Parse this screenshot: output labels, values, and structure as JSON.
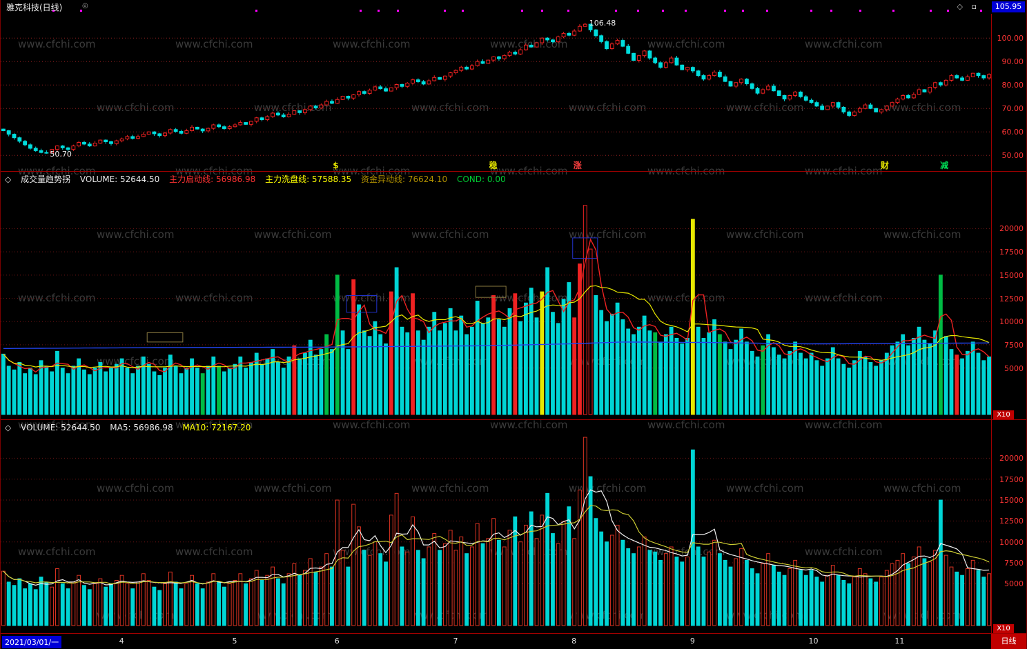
{
  "window": {
    "title": "雅克科技(日线)",
    "badge": "◎",
    "icon_diamond": "◇",
    "icon_square": "▫",
    "price_box": "105.95"
  },
  "watermark": {
    "text": "www.cfchi.com"
  },
  "panels": {
    "candle": {
      "y_ticks": [
        {
          "label": "100.00",
          "v": 100
        },
        {
          "label": "90.00",
          "v": 90
        },
        {
          "label": "80.00",
          "v": 80
        },
        {
          "label": "70.00",
          "v": 70
        },
        {
          "label": "60.00",
          "v": 60
        },
        {
          "label": "50.00",
          "v": 50
        }
      ],
      "high_label": "106.48",
      "high_index": 108,
      "low_label": "50.70",
      "low_index": 8,
      "markers": [
        {
          "f": 0.338,
          "t": "$",
          "c": "#e8e800"
        },
        {
          "f": 0.497,
          "t": "稳",
          "c": "#e8e800"
        },
        {
          "f": 0.582,
          "t": "涨",
          "c": "#ff4040"
        },
        {
          "f": 0.892,
          "t": "财",
          "c": "#e8e800"
        },
        {
          "f": 0.952,
          "t": "减",
          "c": "#00dd55"
        }
      ],
      "dots": [
        0.052,
        0.08,
        0.257,
        0.362,
        0.38,
        0.4,
        0.447,
        0.465,
        0.525,
        0.545,
        0.572,
        0.62,
        0.642,
        0.667,
        0.69,
        0.73,
        0.748,
        0.772,
        0.817,
        0.837,
        0.866,
        0.9,
        0.937,
        0.955,
        0.988
      ]
    },
    "mid": {
      "header": {
        "prefix": "◇",
        "name": "成交量趋势拐",
        "volume": "VOLUME: 52644.50",
        "line1": "主力启动线: 56986.98",
        "line2": "主力洗盘线: 57588.35",
        "line3": "资金异动线: 76624.10",
        "cond": "COND: 0.00"
      },
      "unit": "X10",
      "y_ticks": [
        {
          "label": "20000",
          "v": 20000
        },
        {
          "label": "17500",
          "v": 17500
        },
        {
          "label": "15000",
          "v": 15000
        },
        {
          "label": "12500",
          "v": 12500
        },
        {
          "label": "10000",
          "v": 10000
        },
        {
          "label": "7500",
          "v": 7500
        },
        {
          "label": "5000",
          "v": 5000
        }
      ],
      "color_overrides": {
        "37": "g",
        "40": "g",
        "54": "r",
        "60": "g",
        "62": "g",
        "65": "r",
        "72": "r",
        "76": "r",
        "91": "r",
        "95": "r",
        "100": "y",
        "106": "r",
        "107": "r",
        "108": "R",
        "109": "R",
        "121": "g",
        "128": "y",
        "133": "g",
        "141": "g",
        "174": "g",
        "177": "r"
      },
      "boxes": [
        {
          "i0": 27,
          "i1": 33,
          "v0": 7800,
          "v1": 8800,
          "color": "#8a7a40"
        },
        {
          "i0": 64,
          "i1": 69,
          "v0": 11000,
          "v1": 12800,
          "color": "#2233cc"
        },
        {
          "i0": 88,
          "i1": 93,
          "v0": 12600,
          "v1": 13800,
          "color": "#8a7a40"
        },
        {
          "i0": 106,
          "i1": 110,
          "v0": 16800,
          "v1": 19000,
          "color": "#2233cc"
        }
      ],
      "blue_line": [
        [
          0,
          7100
        ],
        [
          30,
          7200
        ],
        [
          60,
          7250
        ],
        [
          90,
          7400
        ],
        [
          105,
          7600
        ],
        [
          115,
          7800
        ],
        [
          130,
          7750
        ],
        [
          150,
          7600
        ],
        [
          170,
          7650
        ],
        [
          183,
          7700
        ]
      ]
    },
    "vol": {
      "header": {
        "prefix": "◇",
        "volume": "VOLUME: 52644.50",
        "ma5": "MA5: 56986.98",
        "ma10": "MA10: 72167.20"
      },
      "unit": "X10",
      "y_ticks": [
        {
          "label": "20000",
          "v": 20000
        },
        {
          "label": "17500",
          "v": 17500
        },
        {
          "label": "15000",
          "v": 15000
        },
        {
          "label": "12500",
          "v": 12500
        },
        {
          "label": "10000",
          "v": 10000
        },
        {
          "label": "7500",
          "v": 7500
        },
        {
          "label": "5000",
          "v": 5000
        }
      ]
    }
  },
  "timeline": {
    "date": "2021/03/01/一",
    "period": "日线",
    "months": [
      {
        "label": "4",
        "i": 22
      },
      {
        "label": "5",
        "i": 43
      },
      {
        "label": "6",
        "i": 62
      },
      {
        "label": "7",
        "i": 84
      },
      {
        "label": "8",
        "i": 106
      },
      {
        "label": "9",
        "i": 128
      },
      {
        "label": "10",
        "i": 150
      },
      {
        "label": "11",
        "i": 166
      }
    ]
  },
  "chart_data": {
    "type": "candlestick",
    "symbol": "雅克科技",
    "period": "日线",
    "start_date": "2021/03/01",
    "price_high": 106.48,
    "price_low": 50.7,
    "price_axis": [
      100,
      90,
      80,
      70,
      60,
      50
    ],
    "volume_axis_x10": [
      20000,
      17500,
      15000,
      12500,
      10000,
      7500,
      5000
    ],
    "x_axis_months": [
      "4",
      "5",
      "6",
      "7",
      "8",
      "9",
      "10",
      "11"
    ],
    "overlay_lines": {
      "mid_panel": [
        "主力启动线(red)",
        "主力洗盘线(yellow)",
        "资金异动线(blue)"
      ],
      "vol_panel": [
        "MA5(white)",
        "MA10(yellow)"
      ]
    },
    "close": [
      60.5,
      59.0,
      57.5,
      56.0,
      54.5,
      53.0,
      52.0,
      51.2,
      51.0,
      52.5,
      54.0,
      53.2,
      52.5,
      54.0,
      55.5,
      54.8,
      54.0,
      55.2,
      56.5,
      55.8,
      55.0,
      56.2,
      57.0,
      58.0,
      57.2,
      58.0,
      59.0,
      60.0,
      59.2,
      58.4,
      59.5,
      61.0,
      60.2,
      59.4,
      60.5,
      62.0,
      61.2,
      60.4,
      61.5,
      63.0,
      62.2,
      61.4,
      62.2,
      63.0,
      64.0,
      63.2,
      64.5,
      66.0,
      65.2,
      66.5,
      68.0,
      67.2,
      66.4,
      67.5,
      69.0,
      68.2,
      69.5,
      71.0,
      70.2,
      71.5,
      73.0,
      72.2,
      73.8,
      75.2,
      74.4,
      75.8,
      77.2,
      76.4,
      77.8,
      79.2,
      78.4,
      77.4,
      78.8,
      80.2,
      79.4,
      80.8,
      82.2,
      81.4,
      80.4,
      81.8,
      83.2,
      82.4,
      83.8,
      85.2,
      86.2,
      87.6,
      86.8,
      88.2,
      90.0,
      89.2,
      90.6,
      92.0,
      91.2,
      92.6,
      94.0,
      93.2,
      95.0,
      97.0,
      96.2,
      98.0,
      100.0,
      99.2,
      98.4,
      100.5,
      102.0,
      101.2,
      103.0,
      105.0,
      105.9,
      103.5,
      101.0,
      98.5,
      95.5,
      97.5,
      99.0,
      96.5,
      93.5,
      90.5,
      92.5,
      94.5,
      91.5,
      89.5,
      87.5,
      89.5,
      91.5,
      88.5,
      86.5,
      87.5,
      86.0,
      84.0,
      82.5,
      84.0,
      85.5,
      83.5,
      81.5,
      79.5,
      81.0,
      82.5,
      80.5,
      78.5,
      76.5,
      78.0,
      79.5,
      77.5,
      75.5,
      74.0,
      75.5,
      77.0,
      75.0,
      73.5,
      72.5,
      71.0,
      69.5,
      71.0,
      72.5,
      70.5,
      68.5,
      67.0,
      68.5,
      70.0,
      71.5,
      70.0,
      68.5,
      69.5,
      71.0,
      72.5,
      74.0,
      75.5,
      74.5,
      76.0,
      78.0,
      77.0,
      79.0,
      81.0,
      80.0,
      82.0,
      84.0,
      83.0,
      82.0,
      83.5,
      85.0,
      84.0,
      83.0,
      84.5
    ],
    "volume_x10": [
      6500,
      5200,
      4800,
      5600,
      4400,
      5000,
      4300,
      5800,
      5200,
      4600,
      6800,
      5000,
      4400,
      5200,
      6000,
      4800,
      4300,
      5000,
      5600,
      4600,
      5000,
      5400,
      6000,
      5000,
      4400,
      5200,
      6200,
      5400,
      4600,
      4200,
      5000,
      6400,
      5200,
      4400,
      5000,
      6000,
      5000,
      4400,
      5200,
      6200,
      5200,
      4600,
      5000,
      5400,
      6200,
      5000,
      5600,
      6600,
      5400,
      6000,
      7000,
      5600,
      5000,
      6200,
      7400,
      6000,
      6600,
      8000,
      6400,
      7000,
      8600,
      7000,
      15000,
      9000,
      7000,
      14500,
      11800,
      9000,
      8400,
      10000,
      8600,
      7600,
      13200,
      15800,
      9400,
      8800,
      13000,
      9000,
      8000,
      9400,
      11000,
      9000,
      9800,
      11400,
      9000,
      10600,
      8600,
      9400,
      12200,
      9800,
      10400,
      12800,
      10200,
      9400,
      11400,
      13000,
      10000,
      12000,
      13600,
      10400,
      13200,
      15800,
      11000,
      9800,
      12400,
      14200,
      10400,
      16200,
      22500,
      17800,
      12800,
      11200,
      10000,
      10800,
      12000,
      10200,
      9200,
      8600,
      9400,
      10600,
      9000,
      8800,
      7800,
      8600,
      9400,
      8200,
      7600,
      8200,
      21000,
      9400,
      8200,
      8800,
      10200,
      8600,
      7800,
      7000,
      8000,
      9200,
      7800,
      6800,
      6200,
      7400,
      8600,
      7200,
      6400,
      6000,
      6800,
      7800,
      6600,
      6000,
      6600,
      5800,
      5200,
      6000,
      7200,
      6000,
      5400,
      5000,
      5800,
      6800,
      6200,
      5600,
      5200,
      5800,
      6600,
      7400,
      7800,
      8600,
      7400,
      8200,
      9400,
      8000,
      7600,
      9000,
      15000,
      8400,
      7000,
      6400,
      6000,
      6800,
      7800,
      6600,
      5800,
      6200
    ]
  }
}
